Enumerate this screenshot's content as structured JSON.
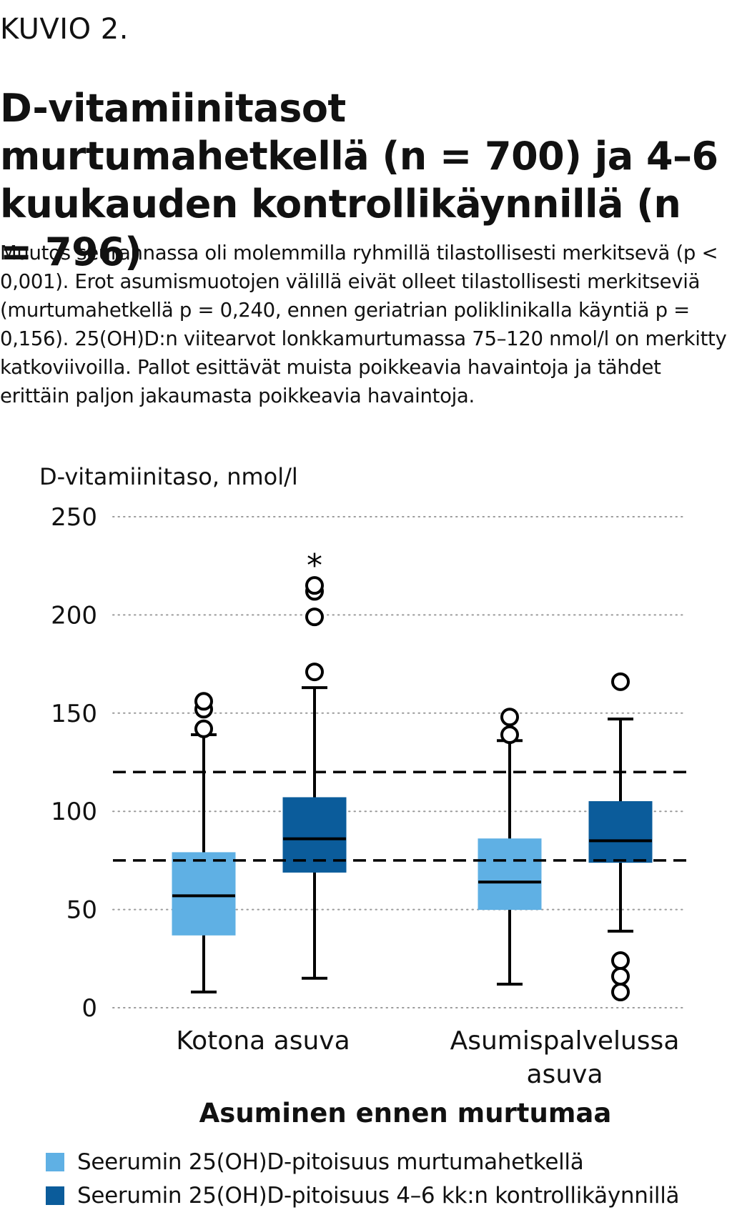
{
  "figure_label": "KUVIO 2.",
  "title": "D-vitamiinitasot murtumahetkellä (n = 700) ja 4–6 kuukauden kontrollikäynnillä (n = 796)",
  "subtitle": "Muutos seurannassa oli molemmilla ryhmillä tilastollisesti merkitsevä (p < 0,001). Erot asumismuotojen välillä eivät olleet tilastollisesti merkitseviä (murtumahetkellä p = 0,240, ennen geriatrian poliklinikalla käyntiä p = 0,156). 25(OH)D:n viitearvot lonkkamurtumassa 75–120 nmol/l on merkitty katkoviivoilla. Pallot esittävät muista poikkeavia havaintoja ja tähdet erittäin paljon jakaumasta poikkeavia havaintoja.",
  "colors": {
    "light": "#5fb0e4",
    "dark": "#0b5c9b"
  },
  "chart_data": {
    "type": "boxplot",
    "ylabel": "D-vitamiinitaso, nmol/l",
    "xlabel": "Asuminen ennen murtumaa",
    "ylim": [
      0,
      250
    ],
    "yticks": [
      0,
      50,
      100,
      150,
      200,
      250
    ],
    "grid": "horizontal dotted",
    "reference_lines": [
      75,
      120
    ],
    "categories": [
      {
        "label": "Kotona asuva",
        "boxes": [
          {
            "series": "Seerumin 25(OH)D-pitoisuus murtumahetkellä",
            "whisker_low": 8,
            "q1": 37,
            "median": 57,
            "q3": 79,
            "whisker_high": 139,
            "outliers": [
              142,
              152,
              156
            ],
            "extremes": []
          },
          {
            "series": "Seerumin 25(OH)D-pitoisuus 4–6 kk:n kontrollikäynnillä",
            "whisker_low": 15,
            "q1": 69,
            "median": 86,
            "q3": 107,
            "whisker_high": 163,
            "outliers": [
              171,
              199,
              212,
              215
            ],
            "extremes": [
              230
            ]
          }
        ]
      },
      {
        "label": "Asumispalvelussa asuva",
        "boxes": [
          {
            "series": "Seerumin 25(OH)D-pitoisuus murtumahetkellä",
            "whisker_low": 12,
            "q1": 50,
            "median": 64,
            "q3": 86,
            "whisker_high": 136,
            "outliers": [
              139,
              148
            ],
            "extremes": []
          },
          {
            "series": "Seerumin 25(OH)D-pitoisuus 4–6 kk:n kontrollikäynnillä",
            "whisker_low": 39,
            "q1": 74,
            "median": 85,
            "q3": 105,
            "whisker_high": 147,
            "outliers": [
              8,
              16,
              24,
              166
            ],
            "extremes": []
          }
        ]
      }
    ],
    "legend": [
      "Seerumin 25(OH)D-pitoisuus murtumahetkellä",
      "Seerumin 25(OH)D-pitoisuus 4–6 kk:n kontrollikäynnillä"
    ]
  }
}
